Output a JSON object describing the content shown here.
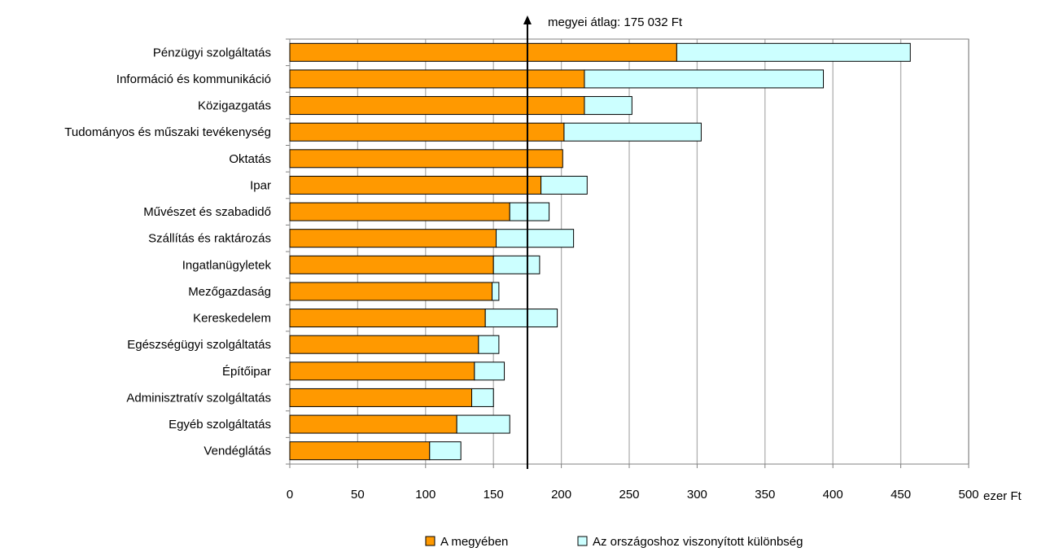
{
  "chart_data": {
    "type": "bar",
    "orientation": "horizontal",
    "stacked": true,
    "categories": [
      "Pénzügyi szolgáltatás",
      "Információ és kommunikáció",
      "Közigazgatás",
      "Tudományos és műszaki tevékenység",
      "Oktatás",
      "Ipar",
      "Művészet és szabadidő",
      "Szállítás és raktározás",
      "Ingatlanügyletek",
      "Mezőgazdaság",
      "Kereskedelem",
      "Egészségügyi szolgáltatás",
      "Építőipar",
      "Adminisztratív szolgáltatás",
      "Egyéb szolgáltatás",
      "Vendéglátás"
    ],
    "series": [
      {
        "name": "A megyében",
        "color": "#FF9900",
        "values": [
          285,
          217,
          217,
          202,
          201,
          185,
          162,
          152,
          150,
          149,
          144,
          139,
          136,
          134,
          123,
          103
        ]
      },
      {
        "name": "Az országoshoz viszonyított különbség",
        "color": "#CCFFFF",
        "values": [
          172,
          176,
          35,
          101,
          0,
          34,
          29,
          57,
          34,
          5,
          53,
          15,
          22,
          16,
          39,
          23
        ]
      }
    ],
    "xlim": [
      0,
      500
    ],
    "xticks": [
      0,
      50,
      100,
      150,
      200,
      250,
      300,
      350,
      400,
      450,
      500
    ],
    "xunit": "ezer Ft",
    "grid": true,
    "legend_position": "bottom",
    "reference_line": {
      "value": 175.032,
      "label": "megyei átlag: 175 032 Ft"
    }
  }
}
